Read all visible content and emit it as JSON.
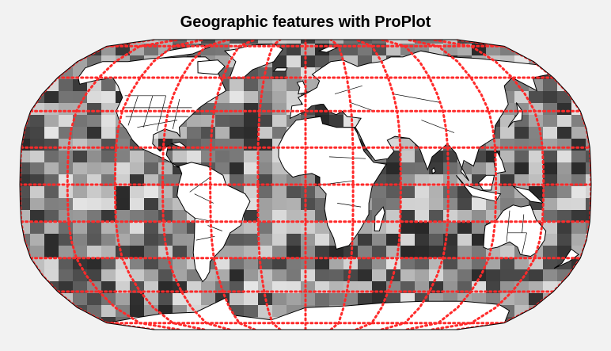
{
  "title": "Geographic features with ProPlot",
  "map": {
    "projection": "Robinson",
    "ocean_field": "random grayscale tiles",
    "land_color": "#ffffff",
    "coastline_color": "#000000",
    "graticule": {
      "color": "#ff2a2a",
      "style": "dotted",
      "lon_step_deg": 30,
      "lat_step_deg": 20
    },
    "features": [
      "land",
      "coastlines",
      "country borders",
      "US state borders",
      "gridlines"
    ]
  }
}
